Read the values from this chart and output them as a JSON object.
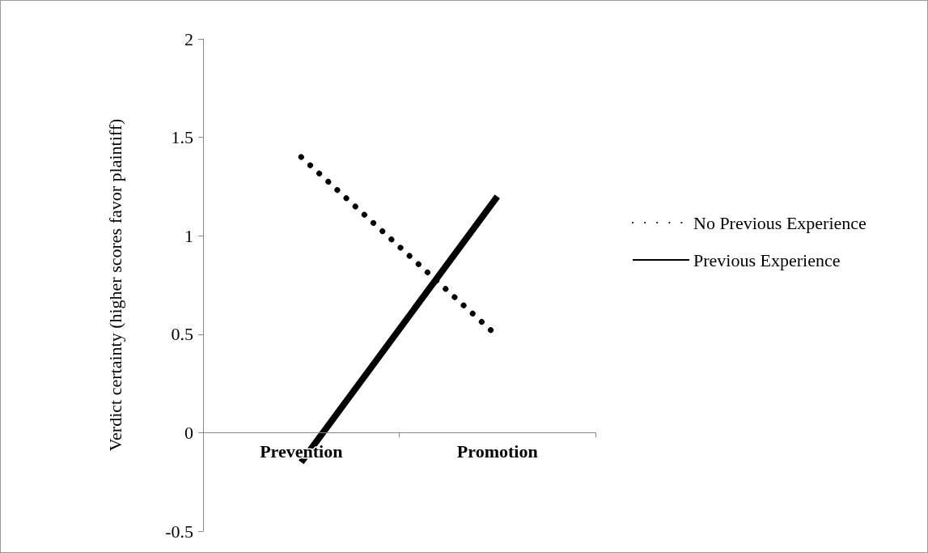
{
  "chart_data": {
    "type": "line",
    "ylabel": "Verdict certainty (higher scores favor plaintiff)",
    "categories": [
      "Prevention",
      "Promotion"
    ],
    "series": [
      {
        "name": "No Previous Experience",
        "color": "#000000",
        "values": [
          1.4,
          0.49
        ],
        "line_style": "dotted"
      },
      {
        "name": "Previous Experience",
        "color": "#000000",
        "values": [
          -0.15,
          1.2
        ],
        "line_style": "solid"
      }
    ],
    "ylim": [
      -0.5,
      2
    ],
    "yticks": [
      -0.5,
      0,
      0.5,
      1,
      1.5,
      2
    ],
    "legend": "right",
    "marker": "none"
  }
}
